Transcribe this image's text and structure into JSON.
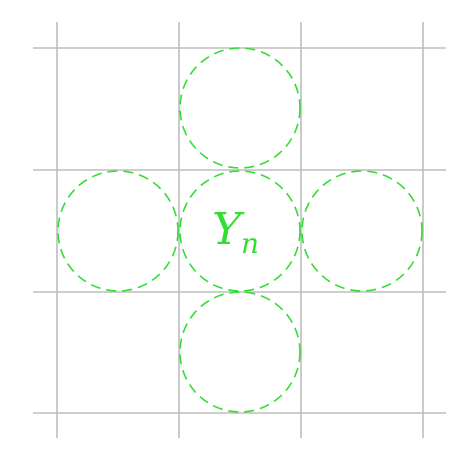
{
  "diagram": {
    "center_label": {
      "main": "Y",
      "subscript": "n"
    },
    "grid": {
      "columns": 3,
      "rows": 3
    },
    "neighbors": [
      "top",
      "left",
      "center",
      "right",
      "bottom"
    ],
    "colors": {
      "grid": "#bdbdbd",
      "circles": "#33dd33",
      "label": "#33dd33",
      "background": "#ffffff"
    }
  }
}
